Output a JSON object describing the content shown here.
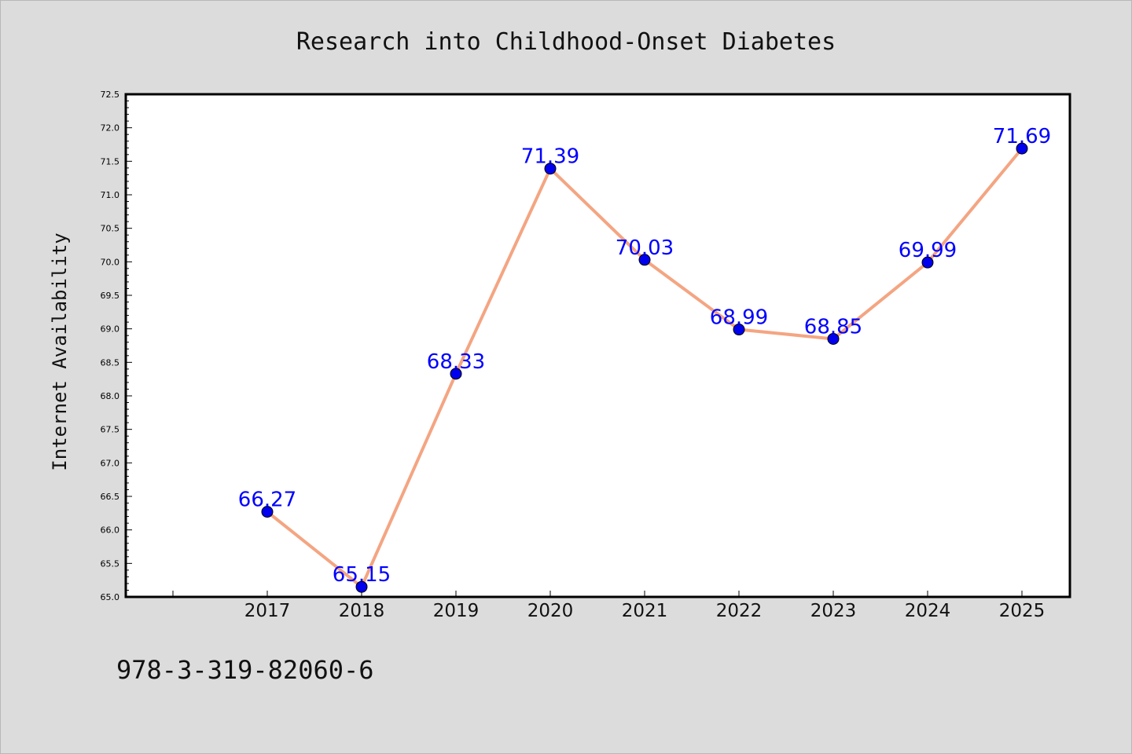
{
  "chart_data": {
    "type": "line",
    "title": "Research into Childhood-Onset Diabetes",
    "xlabel": "",
    "ylabel": "Internet Availability",
    "categories": [
      "2017",
      "2018",
      "2019",
      "2020",
      "2021",
      "2022",
      "2023",
      "2024",
      "2025"
    ],
    "series": [
      {
        "values": [
          66.27,
          65.15,
          68.33,
          71.39,
          70.03,
          68.99,
          68.85,
          69.99,
          71.69
        ],
        "line_color": "#f4a582",
        "marker_color": "#0000ee"
      }
    ],
    "data_labels": [
      "66.27",
      "65.15",
      "68.33",
      "71.39",
      "70.03",
      "68.99",
      "68.85",
      "69.99",
      "71.69"
    ],
    "data_label_color": "#0000ff",
    "ylim": [
      65.0,
      72.5
    ],
    "yticks": [
      "65.0",
      "65.5",
      "66.0",
      "66.5",
      "67.0",
      "67.5",
      "68.0",
      "68.5",
      "69.0",
      "69.5",
      "70.0",
      "70.5",
      "71.0",
      "71.5",
      "72.0",
      "72.5"
    ],
    "grid": false,
    "legend": "none"
  },
  "footer": {
    "isbn": "978-3-319-82060-6"
  }
}
